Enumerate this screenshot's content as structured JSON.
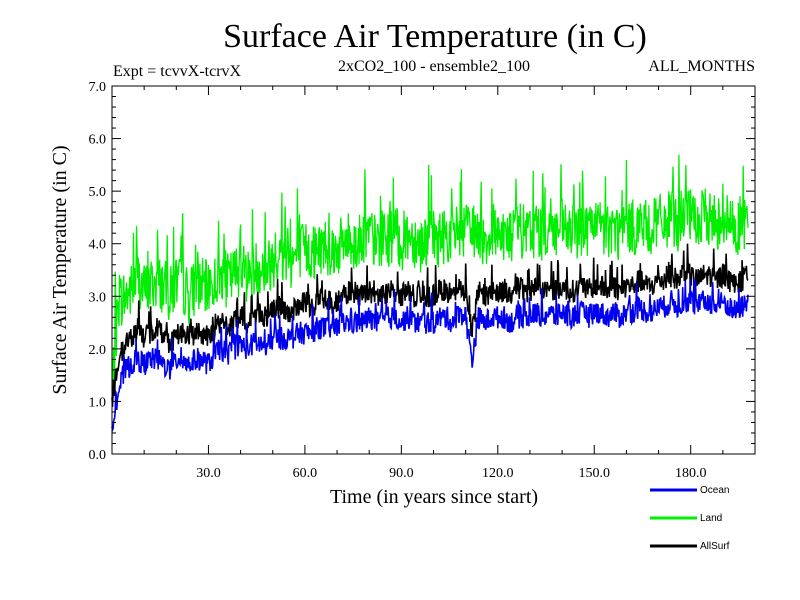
{
  "chart_data": {
    "type": "line",
    "title": "Surface Air Temperature (in C)",
    "header": {
      "left": "Expt = tcvvX-tcrvX",
      "center": "2xCO2_100 - ensemble2_100",
      "right": "ALL_MONTHS"
    },
    "xlabel": "Time (in years since start)",
    "ylabel": "Surface Air Temperature (in C)",
    "xlim": [
      0,
      200
    ],
    "ylim": [
      0.0,
      7.0
    ],
    "x_ticks": [
      30,
      60,
      90,
      120,
      150,
      180
    ],
    "x_tick_labels": [
      "30.0",
      "60.0",
      "90.0",
      "120.0",
      "150.0",
      "180.0"
    ],
    "y_ticks": [
      0,
      1,
      2,
      3,
      4,
      5,
      6,
      7
    ],
    "y_tick_labels": [
      "0.0",
      "1.0",
      "2.0",
      "3.0",
      "4.0",
      "5.0",
      "6.0",
      "7.0"
    ],
    "grid": false,
    "legend_placement": "bottom-right, below plot",
    "x_step": 2,
    "series": [
      {
        "name": "Land",
        "color": "#00ee00",
        "values": [
          1.2,
          2.9,
          3.0,
          3.1,
          3.4,
          3.1,
          3.2,
          3.3,
          3.2,
          3.0,
          3.3,
          3.2,
          3.0,
          3.2,
          3.2,
          3.1,
          3.3,
          3.4,
          3.3,
          3.4,
          3.6,
          3.4,
          3.5,
          3.6,
          3.5,
          3.7,
          3.8,
          3.7,
          3.7,
          3.8,
          3.9,
          3.8,
          3.9,
          4.0,
          3.9,
          3.9,
          4.0,
          4.1,
          4.0,
          4.1,
          4.2,
          4.0,
          4.1,
          4.1,
          4.2,
          4.0,
          4.2,
          4.1,
          4.0,
          4.1,
          4.1,
          4.1,
          4.2,
          4.1,
          4.3,
          4.2,
          4.2,
          4.2,
          4.1,
          4.2,
          4.3,
          4.2,
          4.1,
          4.3,
          4.2,
          4.2,
          4.3,
          4.2,
          4.3,
          4.2,
          4.3,
          4.2,
          4.2,
          4.3,
          4.2,
          4.3,
          4.3,
          4.2,
          4.3,
          4.2,
          4.3,
          4.3,
          4.4,
          4.3,
          4.3,
          4.4,
          4.4,
          4.5,
          4.4,
          4.6,
          4.5,
          4.4,
          4.5,
          4.5,
          4.4,
          4.5,
          4.4,
          4.3,
          4.4,
          4.5
        ],
        "min_values": [
          0.9,
          1.2,
          1.3,
          1.4,
          1.6,
          1.4,
          1.5,
          1.5,
          1.4,
          1.2,
          1.5,
          1.5,
          1.3,
          1.5,
          1.5,
          1.3,
          1.6,
          1.7,
          1.6,
          1.7,
          1.9,
          1.7,
          1.8,
          1.9,
          1.8,
          2.0,
          2.1,
          2.0,
          2.0,
          2.1,
          2.2,
          2.1,
          2.2,
          2.3,
          2.2,
          2.2,
          2.3,
          2.4,
          2.3,
          2.4,
          2.5,
          2.3,
          2.4,
          2.4,
          2.5,
          2.3,
          2.5,
          2.4,
          2.3,
          2.4,
          2.4,
          2.4,
          2.5,
          2.4,
          2.6,
          2.5,
          1.3,
          2.5,
          2.4,
          2.5,
          2.6,
          2.5,
          2.4,
          2.6,
          2.5,
          2.5,
          2.6,
          2.5,
          2.6,
          2.5,
          2.6,
          2.5,
          2.5,
          2.6,
          2.5,
          2.6,
          2.6,
          2.5,
          2.6,
          2.5,
          2.6,
          2.6,
          2.7,
          2.6,
          2.6,
          2.7,
          2.7,
          2.8,
          2.7,
          2.9,
          2.8,
          2.7,
          2.8,
          2.8,
          2.7,
          2.8,
          2.7,
          2.6,
          2.7,
          2.8
        ]
      },
      {
        "name": "AllSurf",
        "color": "#000000",
        "values": [
          0.9,
          1.8,
          2.1,
          2.2,
          2.4,
          2.2,
          2.3,
          2.4,
          2.3,
          2.1,
          2.3,
          2.3,
          2.2,
          2.3,
          2.3,
          2.2,
          2.4,
          2.5,
          2.4,
          2.5,
          2.6,
          2.5,
          2.6,
          2.7,
          2.6,
          2.7,
          2.8,
          2.7,
          2.7,
          2.8,
          2.9,
          2.8,
          2.9,
          3.0,
          2.9,
          2.9,
          3.0,
          3.1,
          3.0,
          3.0,
          3.1,
          3.0,
          3.0,
          3.1,
          3.1,
          3.0,
          3.1,
          3.0,
          3.0,
          3.0,
          3.0,
          3.1,
          3.1,
          3.0,
          3.2,
          3.1,
          2.3,
          3.1,
          3.0,
          3.1,
          3.1,
          3.1,
          3.0,
          3.2,
          3.1,
          3.1,
          3.2,
          3.1,
          3.2,
          3.1,
          3.2,
          3.1,
          3.1,
          3.2,
          3.1,
          3.2,
          3.2,
          3.1,
          3.2,
          3.1,
          3.2,
          3.2,
          3.3,
          3.2,
          3.2,
          3.3,
          3.3,
          3.4,
          3.3,
          3.5,
          3.4,
          3.3,
          3.4,
          3.4,
          3.3,
          3.4,
          3.3,
          3.2,
          3.3,
          3.4
        ]
      },
      {
        "name": "Ocean",
        "color": "#0000ee",
        "values": [
          0.6,
          1.2,
          1.6,
          1.7,
          1.8,
          1.7,
          1.8,
          1.8,
          1.7,
          1.6,
          1.8,
          1.8,
          1.7,
          1.8,
          1.8,
          1.7,
          1.9,
          2.0,
          1.9,
          2.0,
          2.1,
          2.0,
          2.1,
          2.1,
          2.0,
          2.2,
          2.2,
          2.2,
          2.2,
          2.3,
          2.3,
          2.3,
          2.4,
          2.4,
          2.4,
          2.4,
          2.5,
          2.5,
          2.5,
          2.5,
          2.6,
          2.5,
          2.5,
          2.6,
          2.6,
          2.5,
          2.6,
          2.5,
          2.5,
          2.5,
          2.5,
          2.6,
          2.6,
          2.5,
          2.7,
          2.6,
          1.8,
          2.6,
          2.5,
          2.6,
          2.6,
          2.6,
          2.5,
          2.6,
          2.6,
          2.6,
          2.7,
          2.6,
          2.7,
          2.6,
          2.7,
          2.6,
          2.6,
          2.7,
          2.6,
          2.7,
          2.7,
          2.6,
          2.7,
          2.6,
          2.7,
          2.7,
          2.8,
          2.7,
          2.7,
          2.8,
          2.8,
          2.9,
          2.8,
          2.9,
          2.9,
          2.8,
          2.9,
          2.9,
          2.8,
          2.9,
          2.8,
          2.7,
          2.8,
          2.9
        ]
      }
    ],
    "legend": [
      {
        "name": "Ocean",
        "color": "#0000ee"
      },
      {
        "name": "Land",
        "color": "#00ee00"
      },
      {
        "name": "AllSurf",
        "color": "#000000"
      }
    ]
  }
}
